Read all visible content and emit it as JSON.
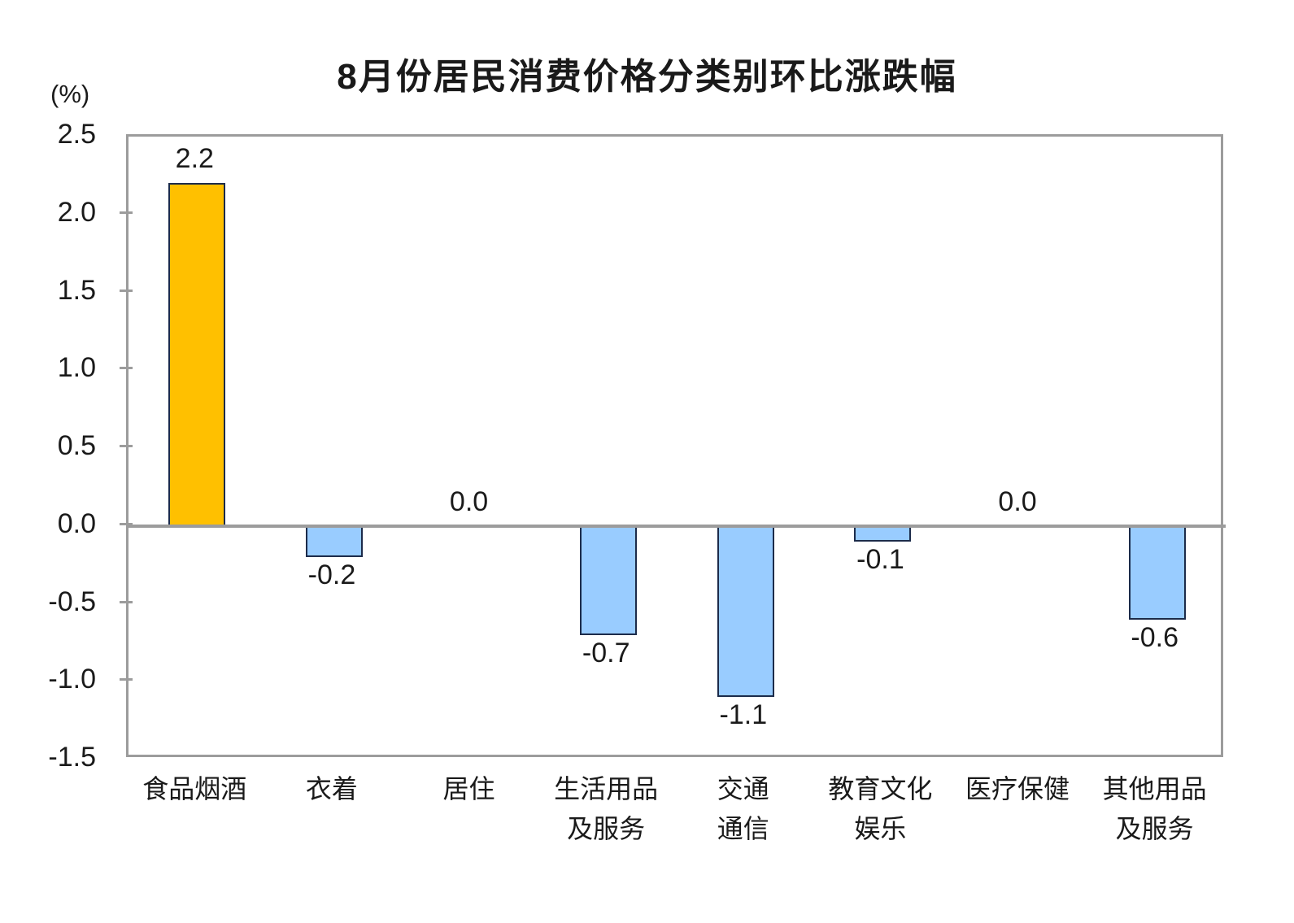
{
  "chart": {
    "title": "8月份居民消费价格分类别环比涨跌幅",
    "unit": "(%)"
  },
  "chart_data": {
    "type": "bar",
    "title": "8月份居民消费价格分类别环比涨跌幅",
    "ylabel": "(%)",
    "xlabel": "",
    "categories": [
      "食品烟酒",
      "衣着",
      "居住",
      "生活用品\n及服务",
      "交通\n通信",
      "教育文化\n娱乐",
      "医疗保健",
      "其他用品\n及服务"
    ],
    "values": [
      2.2,
      -0.2,
      0.0,
      -0.7,
      -1.1,
      -0.1,
      0.0,
      -0.6
    ],
    "data_labels": [
      "2.2",
      "-0.2",
      "0.0",
      "-0.7",
      "-1.1",
      "-0.1",
      "0.0",
      "-0.6"
    ],
    "ylim": [
      -1.5,
      2.5
    ],
    "ytick_labels": [
      "2.5",
      "2.0",
      "1.5",
      "1.0",
      "0.5",
      "0.0",
      "-0.5",
      "-1.0",
      "-1.5"
    ],
    "grid": false,
    "legend": "none",
    "bar_colors": [
      "#FFC000",
      "#99CCFF",
      "#99CCFF",
      "#99CCFF",
      "#99CCFF",
      "#99CCFF",
      "#99CCFF",
      "#99CCFF"
    ],
    "bar_border_color": "#1c2b4a",
    "axis_color": "#9c9c9c",
    "highlight_color": "#FFC000",
    "default_color": "#99CCFF"
  }
}
